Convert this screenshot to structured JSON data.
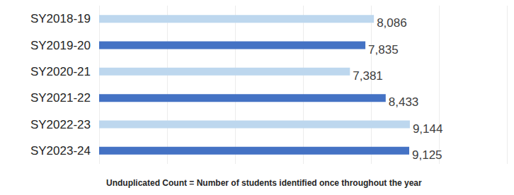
{
  "chart_data": {
    "type": "bar",
    "orientation": "horizontal",
    "categories": [
      "SY2018-19",
      "SY2019-20",
      "SY2020-21",
      "SY2021-22",
      "SY2022-23",
      "SY2023-24"
    ],
    "values": [
      8086,
      7835,
      7381,
      8433,
      9144,
      9125
    ],
    "value_labels": [
      "8,086",
      "7,835",
      "7,381",
      "8,433",
      "9,144",
      "9,125"
    ],
    "colors": [
      "#bdd7ee",
      "#4472c4",
      "#bdd7ee",
      "#4472c4",
      "#bdd7ee",
      "#4472c4"
    ],
    "xlim": [
      0,
      12000
    ],
    "xticks": [
      0,
      2000,
      4000,
      6000,
      8000,
      10000,
      12000
    ],
    "grid": true,
    "data_labels": true,
    "tick_labels": "y",
    "annotation": "Unduplicated Count = Number of students identified once throughout the year"
  }
}
